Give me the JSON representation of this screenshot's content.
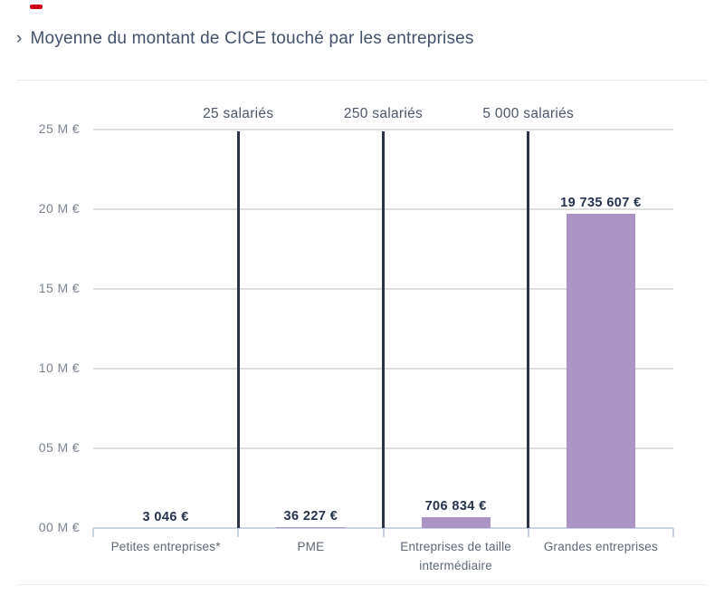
{
  "header": {
    "chevron": "›",
    "title": "Moyenne du montant de CICE touché par les entreprises"
  },
  "chart_data": {
    "type": "bar",
    "title": "Moyenne du montant de CICE touché par les entreprises",
    "categories": [
      "Petites entreprises*",
      "PME",
      "Entreprises de taille intermédiaire",
      "Grandes entreprises"
    ],
    "values": [
      3046,
      36227,
      706834,
      19735607
    ],
    "value_labels": [
      "3 046 €",
      "36 227 €",
      "706 834 €",
      "19 735 607 €"
    ],
    "y_tick_labels": [
      "25 M €",
      "20 M €",
      "15 M €",
      "10 M €",
      "05 M €",
      "00 M €"
    ],
    "y_tick_values": [
      25000000,
      20000000,
      15000000,
      10000000,
      5000000,
      0
    ],
    "ylim": [
      0,
      25000000
    ],
    "xlabel": "",
    "ylabel": "",
    "grid": true,
    "legend": false,
    "dividers": [
      {
        "label": "25 salariés",
        "boundary": 1
      },
      {
        "label": "250 salariés",
        "boundary": 2
      },
      {
        "label": "5 000 salariés",
        "boundary": 3
      }
    ]
  },
  "colors": {
    "bar": "#ab93c4",
    "grid": "#dcdcdc",
    "axis": "#c9d4e0",
    "divider": "#2b3447",
    "title": "#42526b",
    "y_label": "#78828f",
    "divider_label": "#4a5668",
    "value_label": "#26334d",
    "category_label": "#5d6774",
    "separator": "#ebebeb",
    "red_mark": "#d0021b"
  }
}
